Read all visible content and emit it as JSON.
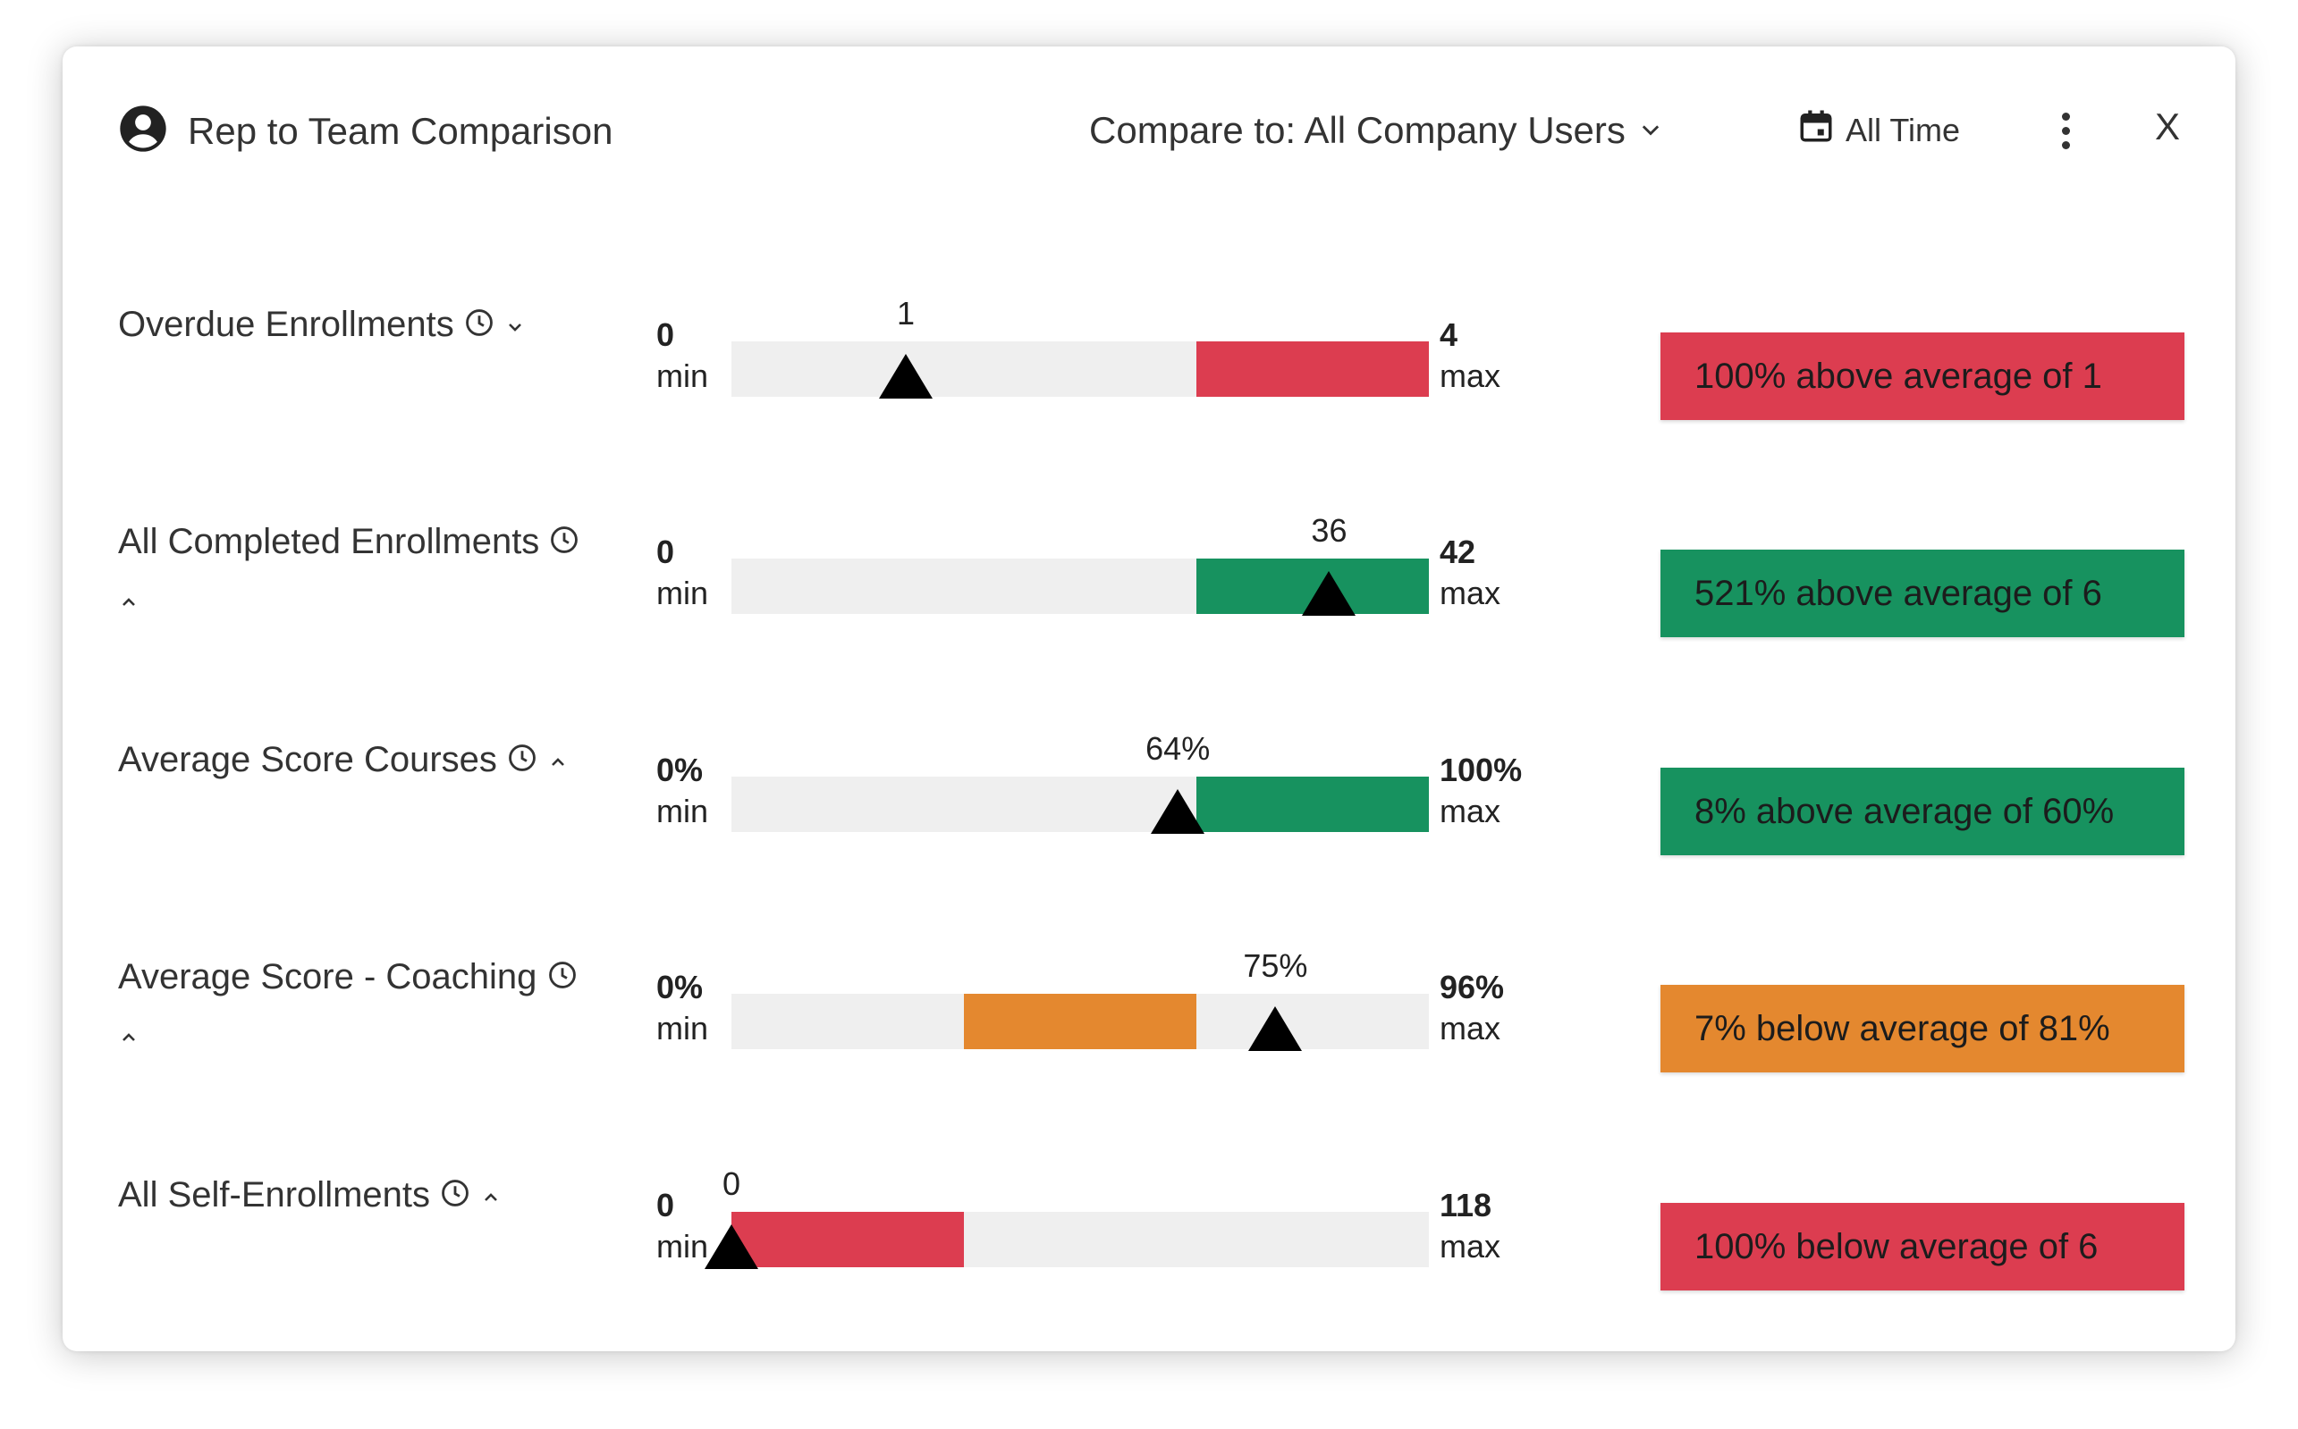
{
  "header": {
    "title": "Rep to Team Comparison",
    "compare_label": "Compare to: All Company Users",
    "date_range": "All Time",
    "close_label": "X"
  },
  "colors": {
    "red": "#dc3d50",
    "green": "#17925f",
    "orange": "#e4882f",
    "track": "#efefef"
  },
  "metrics": [
    {
      "label": "Overdue Enrollments",
      "expanded": false,
      "min_value": "0",
      "min_label": "min",
      "max_value": "4",
      "max_label": "max",
      "current_label": "1",
      "current_fraction": 0.25,
      "fill_start_fraction": 0.667,
      "fill_end_fraction": 1.0,
      "status": "red",
      "badge_text": "100% above average of 1"
    },
    {
      "label": "All Completed Enrollments",
      "expanded": true,
      "min_value": "0",
      "min_label": "min",
      "max_value": "42",
      "max_label": "max",
      "current_label": "36",
      "current_fraction": 0.857,
      "fill_start_fraction": 0.667,
      "fill_end_fraction": 1.0,
      "status": "green",
      "badge_text": "521% above average of 6"
    },
    {
      "label": "Average Score Courses",
      "expanded": true,
      "min_value": "0%",
      "min_label": "min",
      "max_value": "100%",
      "max_label": "max",
      "current_label": "64%",
      "current_fraction": 0.64,
      "fill_start_fraction": 0.667,
      "fill_end_fraction": 1.0,
      "status": "green",
      "badge_text": "8% above average of 60%"
    },
    {
      "label": "Average Score - Coaching",
      "expanded": true,
      "min_value": "0%",
      "min_label": "min",
      "max_value": "96%",
      "max_label": "max",
      "current_label": "75%",
      "current_fraction": 0.78,
      "fill_start_fraction": 0.333,
      "fill_end_fraction": 0.667,
      "status": "orange",
      "badge_text": "7% below average of 81%"
    },
    {
      "label": "All Self-Enrollments",
      "expanded": true,
      "min_value": "0",
      "min_label": "min",
      "max_value": "118",
      "max_label": "max",
      "current_label": "0",
      "current_fraction": 0.0,
      "fill_start_fraction": 0.0,
      "fill_end_fraction": 0.333,
      "status": "red",
      "badge_text": "100% below average of 6"
    }
  ]
}
